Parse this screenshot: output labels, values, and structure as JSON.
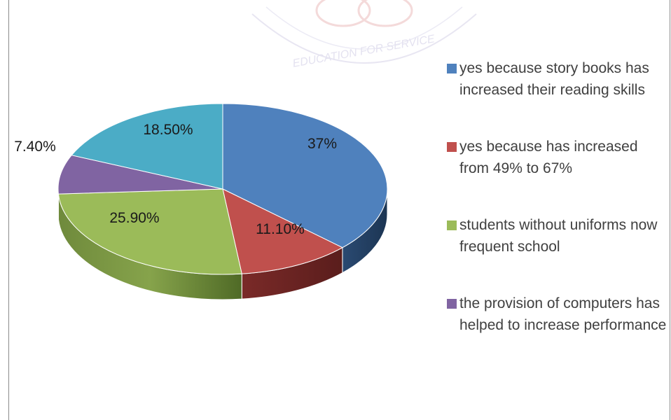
{
  "chart_data": {
    "type": "pie",
    "style": "3d",
    "slices": [
      {
        "label": "yes because story books has increased their reading skills",
        "value": 37,
        "data_label": "37%",
        "color": "#4f81bd"
      },
      {
        "label": "yes because has increased from 49% to 67%",
        "value": 11.1,
        "data_label": "11.10%",
        "color": "#c0504d"
      },
      {
        "label": "students without uniforms now frequent school",
        "value": 25.9,
        "data_label": "25.90%",
        "color": "#9bbb59"
      },
      {
        "label": "the provision of computers has helped to increase performance",
        "value": 7.4,
        "data_label": "7.40%",
        "color": "#8064a2"
      },
      {
        "label": "",
        "value": 18.5,
        "data_label": "18.50%",
        "color": "#4bacc6"
      }
    ],
    "legend_position": "right"
  },
  "watermark": {
    "text": "EDUCATION FOR SERVICE"
  }
}
